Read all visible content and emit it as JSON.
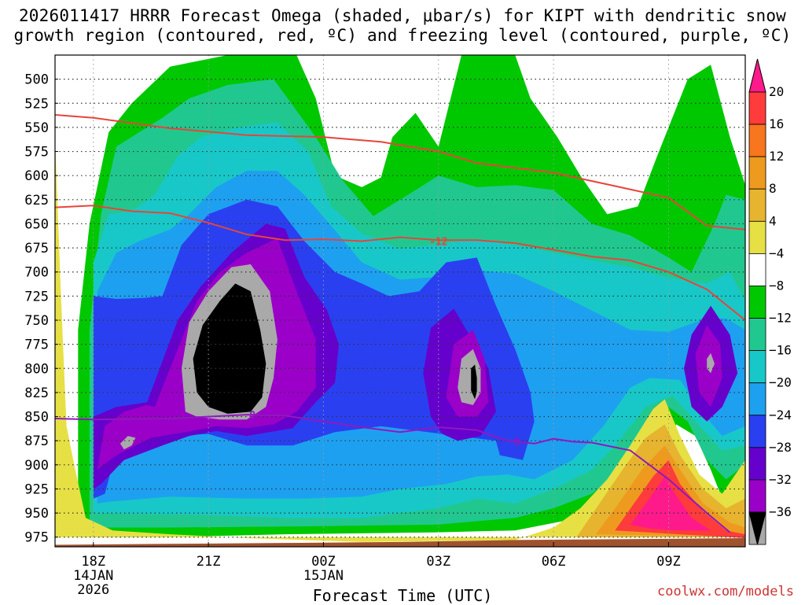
{
  "title": {
    "line1": "2026011417 HRRR Forecast Omega (shaded, μbar/s) for KIPT with dendritic snow",
    "line2": "growth region (contoured, red, ºC) and freezing level (contoured, purple, ºC)"
  },
  "footer": {
    "credit": "coolwx.com/models"
  },
  "chart_data": {
    "type": "heatmap",
    "title": "2026011417 HRRR Forecast Omega (shaded, μbar/s) for KIPT with dendritic snow growth region (contoured, red, ºC) and freezing level (contoured, purple, ºC)",
    "xlabel": "Forecast Time (UTC)",
    "ylabel": "",
    "x_unit": "hours from 2026011417",
    "xlim": [
      0,
      18
    ],
    "ylim": [
      985,
      475
    ],
    "x_ticks": [
      {
        "hour": 1,
        "label": "18Z",
        "label2": "14JAN",
        "label3": "2026"
      },
      {
        "hour": 4,
        "label": "21Z",
        "label2": "",
        "label3": ""
      },
      {
        "hour": 7,
        "label": "00Z",
        "label2": "15JAN",
        "label3": ""
      },
      {
        "hour": 10,
        "label": "03Z",
        "label2": "",
        "label3": ""
      },
      {
        "hour": 13,
        "label": "06Z",
        "label2": "",
        "label3": ""
      },
      {
        "hour": 16,
        "label": "09Z",
        "label2": "",
        "label3": ""
      }
    ],
    "y_ticks": [
      500,
      525,
      550,
      575,
      600,
      625,
      650,
      675,
      700,
      725,
      750,
      775,
      800,
      825,
      850,
      875,
      900,
      925,
      950,
      975
    ],
    "colorbar": {
      "labels": [
        "20",
        "16",
        "12",
        "8",
        "4",
        "−4",
        "−8",
        "−12",
        "−16",
        "−20",
        "−24",
        "−28",
        "−32",
        "−36"
      ],
      "colors": [
        "#ff1a8c",
        "#ff3b3b",
        "#f7761e",
        "#ee9a1f",
        "#e7b42f",
        "#e6e044",
        "#ffffff",
        "#00c800",
        "#20c890",
        "#18c8c8",
        "#1ea0f0",
        "#2a40f0",
        "#6600cc",
        "#9a00c8",
        "#a9a9a9",
        "#000000"
      ]
    },
    "omega_levels": [
      {
        "level": "-8",
        "color": "#00c800"
      },
      {
        "level": "-12",
        "color": "#20c890"
      },
      {
        "level": "-16",
        "color": "#18c8c8"
      },
      {
        "level": "-20",
        "color": "#1ea0f0"
      },
      {
        "level": "-24",
        "color": "#2a40f0"
      },
      {
        "level": "-28",
        "color": "#6600cc"
      },
      {
        "level": "-32",
        "color": "#9a00c8"
      },
      {
        "level": "-36",
        "color": "#a9a9a9"
      },
      {
        "level": "<-36",
        "color": "#000000"
      },
      {
        "level": "4",
        "color": "#e6e044"
      },
      {
        "level": "8",
        "color": "#e7b42f"
      },
      {
        "level": "12",
        "color": "#ee9a1f"
      },
      {
        "level": "16",
        "color": "#ff3b3b"
      },
      {
        "level": "20",
        "color": "#ff1a8c"
      }
    ],
    "contours": [
      {
        "name": "-18 °C (dendritic top)",
        "color": "#e8443a",
        "points": [
          [
            0,
            537
          ],
          [
            1,
            540
          ],
          [
            3,
            551
          ],
          [
            5,
            558
          ],
          [
            7,
            560
          ],
          [
            8.5,
            565
          ],
          [
            10,
            575
          ],
          [
            11,
            587
          ],
          [
            13,
            597
          ],
          [
            14.5,
            610
          ],
          [
            16,
            623
          ],
          [
            17,
            652
          ],
          [
            18,
            656
          ]
        ]
      },
      {
        "name": "-12 °C (dendritic bottom)",
        "color": "#e8443a",
        "label": "-12",
        "points": [
          [
            0,
            633
          ],
          [
            1,
            631
          ],
          [
            2,
            637
          ],
          [
            3,
            639
          ],
          [
            4,
            649
          ],
          [
            5,
            661
          ],
          [
            6,
            667
          ],
          [
            7,
            666
          ],
          [
            8,
            668
          ],
          [
            9,
            664
          ],
          [
            10,
            667
          ],
          [
            11,
            667
          ],
          [
            12,
            670
          ],
          [
            13,
            677
          ],
          [
            14,
            684
          ],
          [
            15,
            688
          ],
          [
            16,
            700
          ],
          [
            17,
            718
          ],
          [
            18,
            750
          ]
        ]
      },
      {
        "name": "0 °C (freezing level)",
        "color": "#9018c0",
        "labels": [
          "0",
          "0"
        ],
        "points": [
          [
            0,
            852
          ],
          [
            1,
            853
          ],
          [
            3,
            852
          ],
          [
            5,
            848
          ],
          [
            6,
            849
          ],
          [
            7,
            855
          ],
          [
            8,
            861
          ],
          [
            9,
            866
          ],
          [
            10,
            861
          ],
          [
            11,
            864
          ],
          [
            11.7,
            874
          ],
          [
            12.5,
            878
          ],
          [
            13,
            873
          ],
          [
            13.5,
            876
          ],
          [
            14,
            877
          ],
          [
            15,
            885
          ],
          [
            16,
            915
          ],
          [
            17,
            950
          ],
          [
            17.6,
            970
          ]
        ]
      }
    ]
  }
}
